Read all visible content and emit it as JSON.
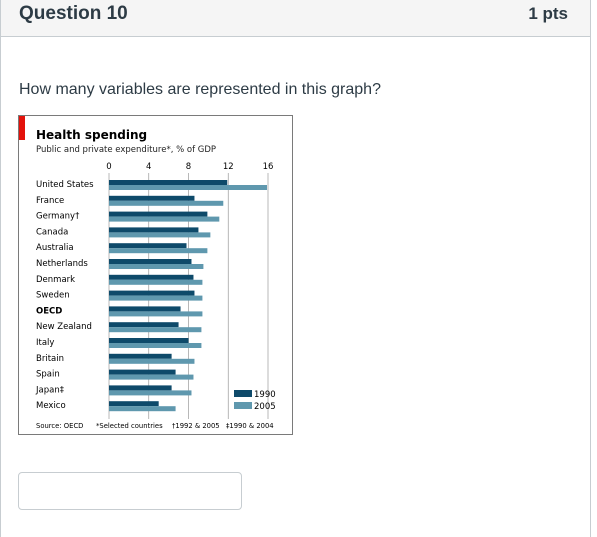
{
  "question": {
    "title": "Question 10",
    "points": "1 pts",
    "text": "How many variables are represented in this graph?",
    "answer_value": ""
  },
  "chart_data": {
    "type": "bar",
    "orientation": "horizontal",
    "title": "Health spending",
    "subtitle": "Public and private expenditure*, % of GDP",
    "categories": [
      "United States",
      "France",
      "Germany†",
      "Canada",
      "Australia",
      "Netherlands",
      "Denmark",
      "Sweden",
      "OECD",
      "New Zealand",
      "Italy",
      "Britain",
      "Spain",
      "Japan‡",
      "Mexico"
    ],
    "bold_categories": [
      "OECD"
    ],
    "series": [
      {
        "name": "1990",
        "color": "#0e4a6a",
        "values": [
          11.9,
          8.6,
          9.9,
          9.0,
          7.8,
          8.3,
          8.5,
          8.6,
          7.2,
          7.0,
          8.0,
          6.3,
          6.7,
          6.3,
          5.0
        ]
      },
      {
        "name": "2005",
        "color": "#5f98ae",
        "values": [
          15.9,
          11.5,
          11.1,
          10.2,
          9.9,
          9.5,
          9.4,
          9.4,
          9.4,
          9.3,
          9.3,
          8.6,
          8.5,
          8.3,
          6.7
        ]
      }
    ],
    "xticks": [
      0,
      4,
      8,
      12,
      16
    ],
    "xlim": [
      0,
      16
    ],
    "legend": "bottom-right",
    "source": "Source: OECD",
    "footnotes": [
      "*Selected countries",
      "†1992 & 2005",
      "‡1990 & 2004"
    ]
  }
}
